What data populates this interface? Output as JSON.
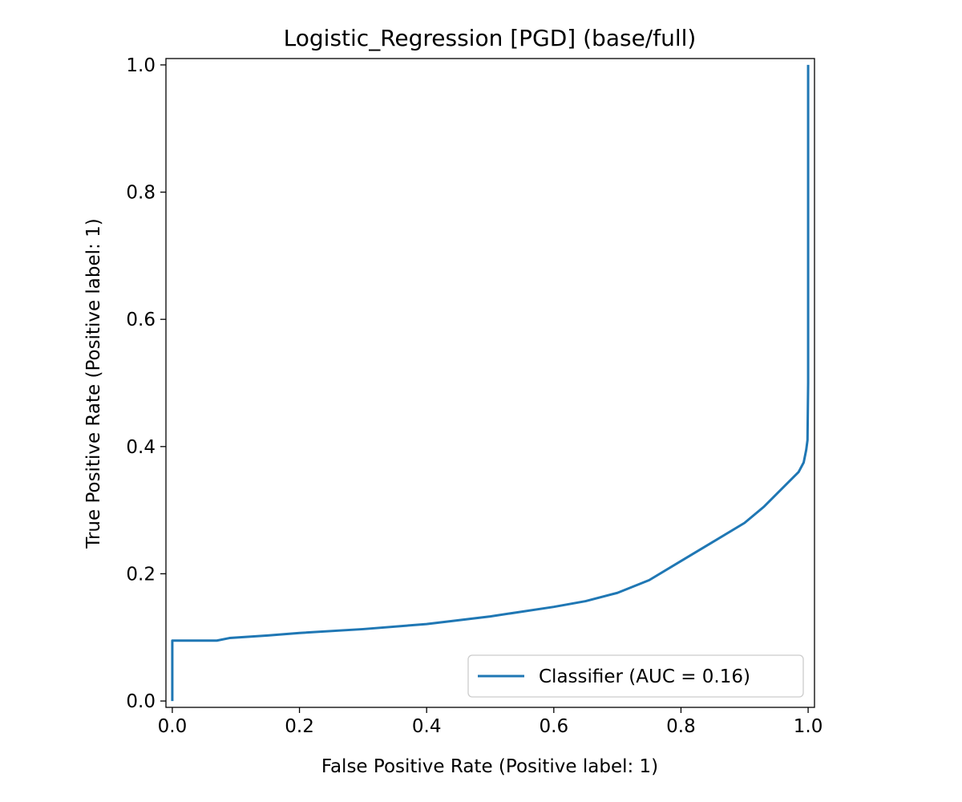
{
  "chart_data": {
    "type": "line",
    "title": "Logistic_Regression [PGD] (base/full)",
    "xlabel": "False Positive Rate (Positive label: 1)",
    "ylabel": "True Positive Rate (Positive label: 1)",
    "xlim": [
      -0.01,
      1.01
    ],
    "ylim": [
      -0.01,
      1.01
    ],
    "xticks": [
      "0.0",
      "0.2",
      "0.4",
      "0.6",
      "0.8",
      "1.0"
    ],
    "yticks": [
      "0.0",
      "0.2",
      "0.4",
      "0.6",
      "0.8",
      "1.0"
    ],
    "grid": false,
    "legend_position": "lower-right",
    "series": [
      {
        "name": "Classifier (AUC = 0.16)",
        "color": "#1f77b4",
        "x": [
          0.0,
          0.0,
          0.005,
          0.07,
          0.09,
          0.15,
          0.2,
          0.3,
          0.4,
          0.5,
          0.6,
          0.65,
          0.7,
          0.75,
          0.8,
          0.85,
          0.9,
          0.93,
          0.95,
          0.97,
          0.985,
          0.993,
          0.997,
          0.999,
          1.0,
          1.0
        ],
        "y": [
          0.0,
          0.095,
          0.095,
          0.095,
          0.099,
          0.103,
          0.107,
          0.113,
          0.121,
          0.133,
          0.148,
          0.157,
          0.17,
          0.19,
          0.22,
          0.25,
          0.28,
          0.305,
          0.325,
          0.345,
          0.36,
          0.375,
          0.395,
          0.41,
          0.5,
          1.0
        ]
      }
    ]
  }
}
